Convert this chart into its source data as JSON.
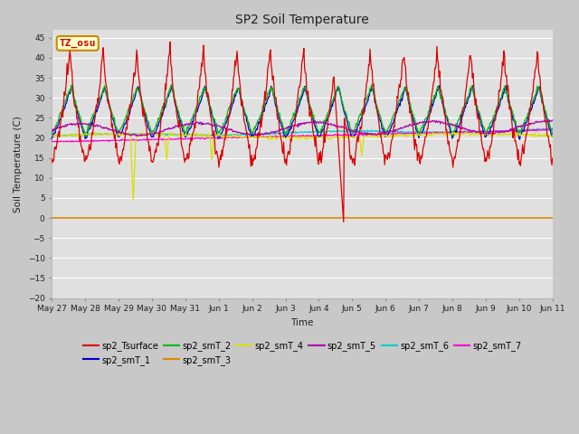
{
  "title": "SP2 Soil Temperature",
  "xlabel": "Time",
  "ylabel": "Soil Temperature (C)",
  "ylim": [
    -20,
    47
  ],
  "yticks": [
    -20,
    -15,
    -10,
    -5,
    0,
    5,
    10,
    15,
    20,
    25,
    30,
    35,
    40,
    45
  ],
  "fig_bg": "#c8c8c8",
  "plot_bg": "#e0e0e0",
  "grid_color": "#ffffff",
  "legend_entries": [
    {
      "label": "sp2_Tsurface",
      "color": "#dd0000"
    },
    {
      "label": "sp2_smT_1",
      "color": "#0000cc"
    },
    {
      "label": "sp2_smT_2",
      "color": "#00bb00"
    },
    {
      "label": "sp2_smT_3",
      "color": "#dd8800"
    },
    {
      "label": "sp2_smT_4",
      "color": "#dddd00"
    },
    {
      "label": "sp2_smT_5",
      "color": "#aa00aa"
    },
    {
      "label": "sp2_smT_6",
      "color": "#00cccc"
    },
    {
      "label": "sp2_smT_7",
      "color": "#ff00cc"
    }
  ],
  "annotation_text": "TZ_osu",
  "annotation_color": "#cc0000",
  "annotation_bg": "#ffffcc",
  "annotation_border": "#cc8800",
  "day_labels": [
    "May 27",
    "May 28",
    "May 29",
    "May 30",
    "May 31",
    "Jun 1",
    "Jun 2",
    "Jun 3",
    "Jun 4",
    "Jun 5",
    "Jun 6",
    "Jun 7",
    "Jun 8",
    "Jun 9",
    "Jun 10",
    "Jun 11"
  ]
}
